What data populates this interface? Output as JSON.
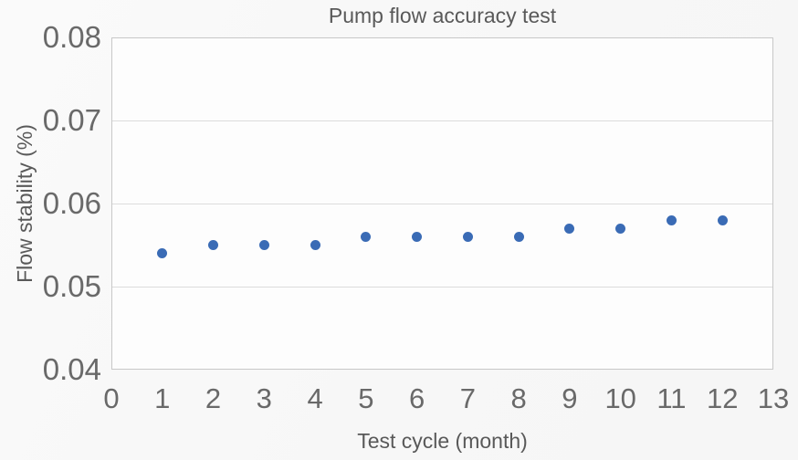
{
  "colors": {
    "point": "#3a6bb5",
    "text": "#595959",
    "tick_text": "#696969",
    "grid": "#dcdcdc",
    "plot_border": "#c8c8c8",
    "background": "#f8f8f8",
    "plot_background": "#fdfdfd"
  },
  "chart_data": {
    "type": "scatter",
    "title": "Pump flow accuracy test",
    "xlabel": "Test cycle (month)",
    "ylabel": "Flow stability (%)",
    "x": [
      1,
      2,
      3,
      4,
      5,
      6,
      7,
      8,
      9,
      10,
      11,
      12
    ],
    "y": [
      0.054,
      0.055,
      0.055,
      0.055,
      0.056,
      0.056,
      0.056,
      0.056,
      0.057,
      0.057,
      0.058,
      0.058
    ],
    "xlim": [
      0,
      13
    ],
    "ylim": [
      0.04,
      0.08
    ],
    "x_tick_labels": [
      "0",
      "1",
      "2",
      "3",
      "4",
      "5",
      "6",
      "7",
      "8",
      "9",
      "10",
      "11",
      "12",
      "13"
    ],
    "y_tick_labels": [
      "0.04",
      "0.05",
      "0.06",
      "0.07",
      "0.08"
    ],
    "grid": "horizontal",
    "legend_position": "none",
    "marker": "circle"
  }
}
